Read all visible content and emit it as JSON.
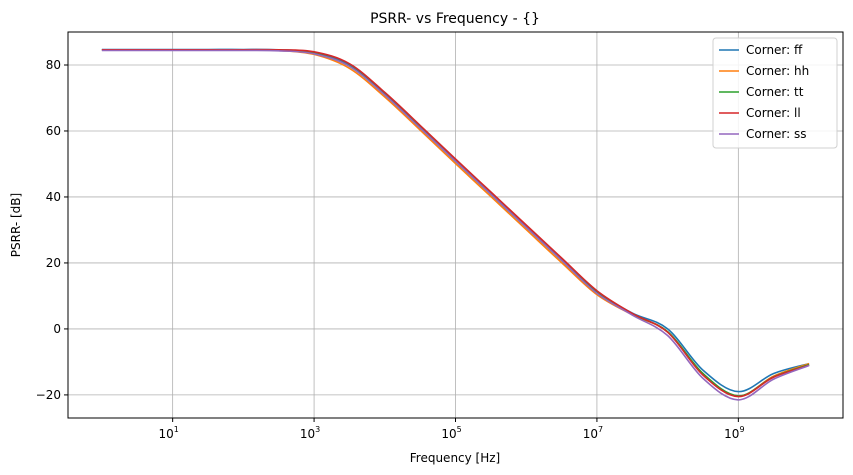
{
  "chart_data": {
    "type": "line",
    "title": "PSRR- vs Frequency - {}",
    "xlabel": "Frequency [Hz]",
    "ylabel": "PSRR- [dB]",
    "xscale": "log",
    "xlim_log10": [
      -0.48,
      10.48
    ],
    "ylim": [
      -27,
      90
    ],
    "grid": true,
    "legend_position": "top-right",
    "x_ticks": [
      {
        "base": "10",
        "exp": "1",
        "value": 10
      },
      {
        "base": "10",
        "exp": "3",
        "value": 1000
      },
      {
        "base": "10",
        "exp": "5",
        "value": 100000
      },
      {
        "base": "10",
        "exp": "7",
        "value": 10000000
      },
      {
        "base": "10",
        "exp": "9",
        "value": 1000000000
      }
    ],
    "y_ticks": [
      {
        "label": "−20",
        "value": -20
      },
      {
        "label": "0",
        "value": 0
      },
      {
        "label": "20",
        "value": 20
      },
      {
        "label": "40",
        "value": 40
      },
      {
        "label": "60",
        "value": 60
      },
      {
        "label": "80",
        "value": 80
      }
    ],
    "x": [
      1,
      3.16,
      10,
      31.6,
      100,
      316,
      1000,
      3162,
      10000,
      31623,
      100000,
      316228,
      1000000,
      3162278,
      10000000,
      31622777,
      100000000,
      316227766,
      1000000000,
      3162277660,
      10000000000
    ],
    "series": [
      {
        "name": "Corner: ff",
        "color": "#1f77b4",
        "values": [
          84.7,
          84.7,
          84.7,
          84.7,
          84.7,
          84.6,
          83.8,
          80.0,
          71.3,
          61.3,
          51.1,
          41.1,
          31.1,
          21.1,
          11.3,
          4.8,
          0.0,
          -12.5,
          -19.0,
          -13.5,
          -10.5
        ]
      },
      {
        "name": "Corner: hh",
        "color": "#ff7f0e",
        "values": [
          84.6,
          84.6,
          84.6,
          84.6,
          84.6,
          84.4,
          83.2,
          79.0,
          70.3,
          60.3,
          50.1,
          40.1,
          30.1,
          20.1,
          10.4,
          4.3,
          -0.9,
          -13.6,
          -20.4,
          -14.3,
          -10.5
        ]
      },
      {
        "name": "Corner: tt",
        "color": "#2ca02c",
        "values": [
          84.6,
          84.6,
          84.6,
          84.6,
          84.6,
          84.5,
          83.6,
          79.7,
          71.0,
          61.0,
          50.8,
          40.8,
          30.8,
          20.8,
          11.0,
          4.5,
          -0.8,
          -13.5,
          -20.3,
          -14.5,
          -10.8
        ]
      },
      {
        "name": "Corner: ll",
        "color": "#d62728",
        "values": [
          84.6,
          84.6,
          84.6,
          84.6,
          84.6,
          84.6,
          84.0,
          80.4,
          71.7,
          61.7,
          51.5,
          41.5,
          31.5,
          21.5,
          11.6,
          4.7,
          -1.0,
          -14.0,
          -20.5,
          -14.6,
          -11.0
        ]
      },
      {
        "name": "Corner: ss",
        "color": "#9467bd",
        "values": [
          84.4,
          84.4,
          84.4,
          84.4,
          84.4,
          84.3,
          83.4,
          79.6,
          70.9,
          60.9,
          50.8,
          40.8,
          30.8,
          20.8,
          10.8,
          4.2,
          -2.0,
          -15.0,
          -21.5,
          -15.2,
          -11.1
        ]
      }
    ]
  }
}
